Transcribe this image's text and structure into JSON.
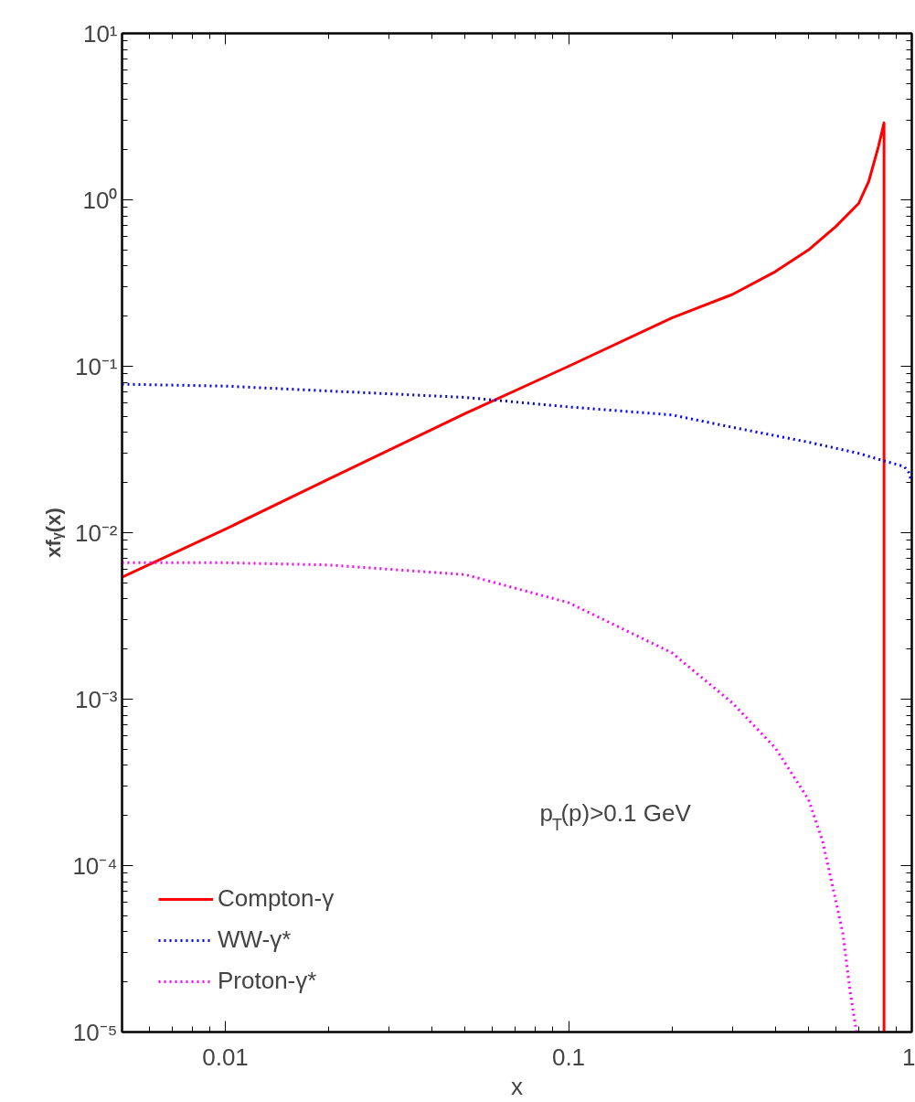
{
  "chart_data": {
    "type": "line",
    "xlabel": "x",
    "ylabel": "xfᵧ(x)",
    "log": "xy",
    "xlim": [
      0.005,
      1
    ],
    "ylim": [
      1e-05,
      10
    ],
    "xticks": [
      0.01,
      0.1,
      1
    ],
    "yticks": [
      {
        "value": 1e-05,
        "label": "10⁻⁵"
      },
      {
        "value": 0.0001,
        "label": "10⁻⁴"
      },
      {
        "value": 0.001,
        "label": "10⁻³"
      },
      {
        "value": 0.01,
        "label": "10⁻²"
      },
      {
        "value": 0.1,
        "label": "10⁻¹"
      },
      {
        "value": 1,
        "label": "10⁰"
      },
      {
        "value": 10,
        "label": "10¹"
      }
    ],
    "grid": false,
    "legend": "bottom left",
    "marker": "none",
    "annotations": [
      "p$_{T}$(p)>0.1 GeV"
    ],
    "series": [
      {
        "name": "Compton-γ",
        "color": "#ff0000",
        "line_style": "solid",
        "x": [
          0.005,
          0.01,
          0.02,
          0.05,
          0.1,
          0.2,
          0.3,
          0.4,
          0.5,
          0.6,
          0.7,
          0.75,
          0.8,
          0.83,
          0.83
        ],
        "values": [
          0.0054,
          0.0105,
          0.021,
          0.052,
          0.1,
          0.195,
          0.27,
          0.37,
          0.5,
          0.69,
          0.95,
          1.3,
          2.1,
          2.9,
          1e-05
        ]
      },
      {
        "name": "WW-γ*",
        "color": "#0000ff",
        "line_style": "dotted",
        "x": [
          0.005,
          0.01,
          0.05,
          0.1,
          0.2,
          0.3,
          0.5,
          0.7,
          0.83,
          0.95,
          0.98,
          1.0
        ],
        "values": [
          0.078,
          0.076,
          0.065,
          0.057,
          0.051,
          0.043,
          0.035,
          0.03,
          0.027,
          0.025,
          0.023,
          0.02
        ]
      },
      {
        "name": "Proton-γ*",
        "color": "#ff00ff",
        "line_style": "dotted",
        "x": [
          0.005,
          0.01,
          0.02,
          0.05,
          0.1,
          0.2,
          0.3,
          0.4,
          0.5,
          0.55,
          0.6,
          0.63,
          0.66,
          0.69
        ],
        "values": [
          0.0066,
          0.0066,
          0.0064,
          0.0056,
          0.0038,
          0.0019,
          0.00095,
          0.00051,
          0.00025,
          0.00014,
          6.2e-05,
          3.9e-05,
          1.8e-05,
          1e-05
        ]
      }
    ]
  }
}
